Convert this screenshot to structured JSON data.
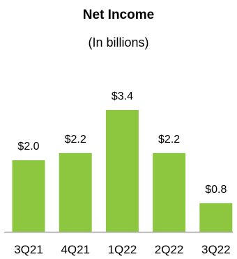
{
  "chart_data": {
    "type": "bar",
    "title": "Net Income",
    "subtitle": "(In billions)",
    "xlabel": "",
    "ylabel": "",
    "categories": [
      "3Q21",
      "4Q21",
      "1Q22",
      "2Q22",
      "3Q22"
    ],
    "values": [
      2.0,
      2.2,
      3.4,
      2.2,
      0.8
    ],
    "value_labels": [
      "$2.0",
      "$2.2",
      "$3.4",
      "$2.2",
      "$0.8"
    ],
    "ylim": [
      0,
      3.4
    ],
    "grid": false,
    "legend": "none",
    "bar_color": "#8dc63f",
    "axis_color": "#a6a6a6"
  }
}
